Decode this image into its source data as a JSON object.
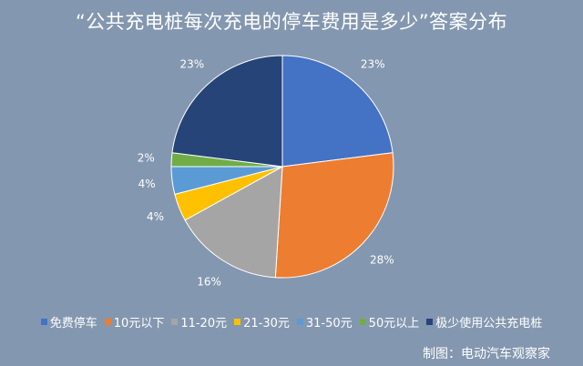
{
  "chart_data": {
    "type": "pie",
    "title": "“公共充电桩每次充电的停车费用是多少”答案分布",
    "categories": [
      "免费停车",
      "10元以下",
      "11-20元",
      "21-30元",
      "31-50元",
      "50元以上",
      "极少使用公共充电桩"
    ],
    "values": [
      23,
      28,
      16,
      4,
      4,
      2,
      23
    ],
    "value_labels": [
      "23%",
      "28%",
      "16%",
      "4%",
      "4%",
      "2%",
      "23%"
    ],
    "colors": [
      "#4472c4",
      "#ed7d31",
      "#a5a5a5",
      "#ffc000",
      "#5b9bd5",
      "#70ad47",
      "#264478"
    ],
    "legend_position": "bottom",
    "start_angle_deg": 0,
    "direction": "clockwise"
  },
  "credit": "制图：电动汽车观察家"
}
